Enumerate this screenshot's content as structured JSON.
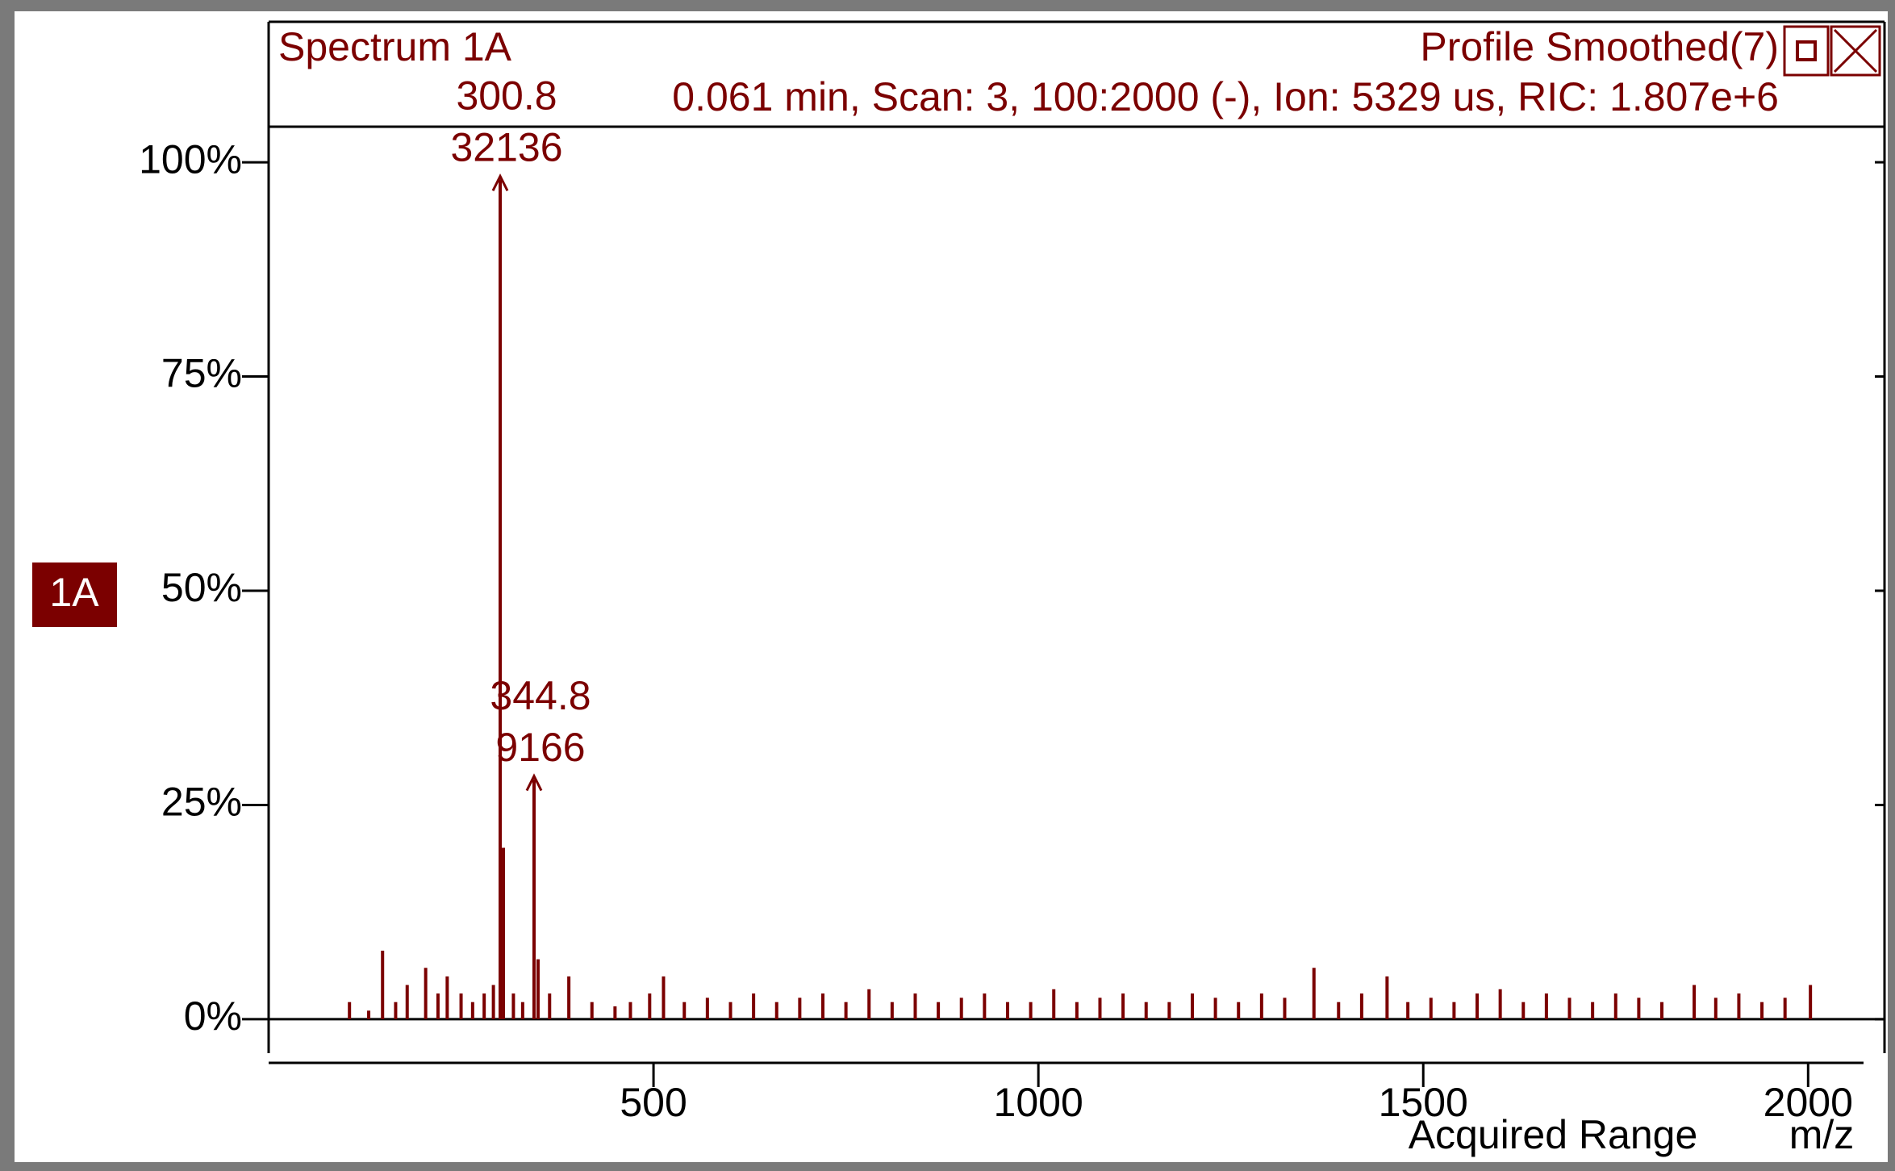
{
  "chart_data": {
    "type": "spectrum",
    "title": "Spectrum 1A",
    "subtitle": "0.061 min, Scan: 3, 100:2000 (-), Ion: 5329 us, RIC: 1.807e+6",
    "mode": "Profile Smoothed(7)",
    "trace_label": "1A",
    "x_label": "Acquired Range",
    "x_unit": "m/z",
    "color": "#7b0000",
    "xlim": [
      0,
      2072
    ],
    "ylim": [
      -4,
      104
    ],
    "xticks": [
      500,
      1000,
      1500,
      2000
    ],
    "yticks": [
      {
        "value": 0,
        "label": "0%"
      },
      {
        "value": 25,
        "label": "25%"
      },
      {
        "value": 50,
        "label": "50%"
      },
      {
        "value": 75,
        "label": "75%"
      },
      {
        "value": 100,
        "label": "100%"
      }
    ],
    "x": [
      105,
      130,
      148,
      165,
      180,
      204,
      220,
      232,
      250,
      265,
      280,
      292,
      300.8,
      305,
      318,
      330,
      344.8,
      350,
      365,
      390,
      420,
      450,
      470,
      495,
      513,
      540,
      570,
      600,
      630,
      660,
      690,
      720,
      750,
      780,
      810,
      840,
      870,
      900,
      930,
      960,
      990,
      1020,
      1050,
      1080,
      1110,
      1140,
      1170,
      1200,
      1230,
      1260,
      1290,
      1320,
      1358,
      1390,
      1420,
      1453,
      1480,
      1510,
      1540,
      1570,
      1600,
      1630,
      1660,
      1690,
      1720,
      1750,
      1780,
      1810,
      1852,
      1880,
      1910,
      1940,
      1970,
      2003
    ],
    "values": [
      2,
      1,
      8,
      2,
      4,
      6,
      3,
      5,
      3,
      2,
      3,
      4,
      98,
      20,
      3,
      2,
      28,
      7,
      3,
      5,
      2,
      1.5,
      2,
      3,
      5,
      2,
      2.5,
      2,
      3,
      2,
      2.5,
      3,
      2,
      3.5,
      2,
      3,
      2,
      2.5,
      3,
      2,
      2,
      3.5,
      2,
      2.5,
      3,
      2,
      2,
      3,
      2.5,
      2,
      3,
      2.5,
      6,
      2,
      3,
      5,
      2,
      2.5,
      2,
      3,
      3.5,
      2,
      3,
      2.5,
      2,
      3,
      2.5,
      2,
      4,
      2.5,
      3,
      2,
      2.5,
      4
    ],
    "peaks": [
      {
        "x": 300.8,
        "y": 98,
        "counts": 32136
      },
      {
        "x": 344.8,
        "y": 28,
        "counts": 9166
      }
    ]
  }
}
